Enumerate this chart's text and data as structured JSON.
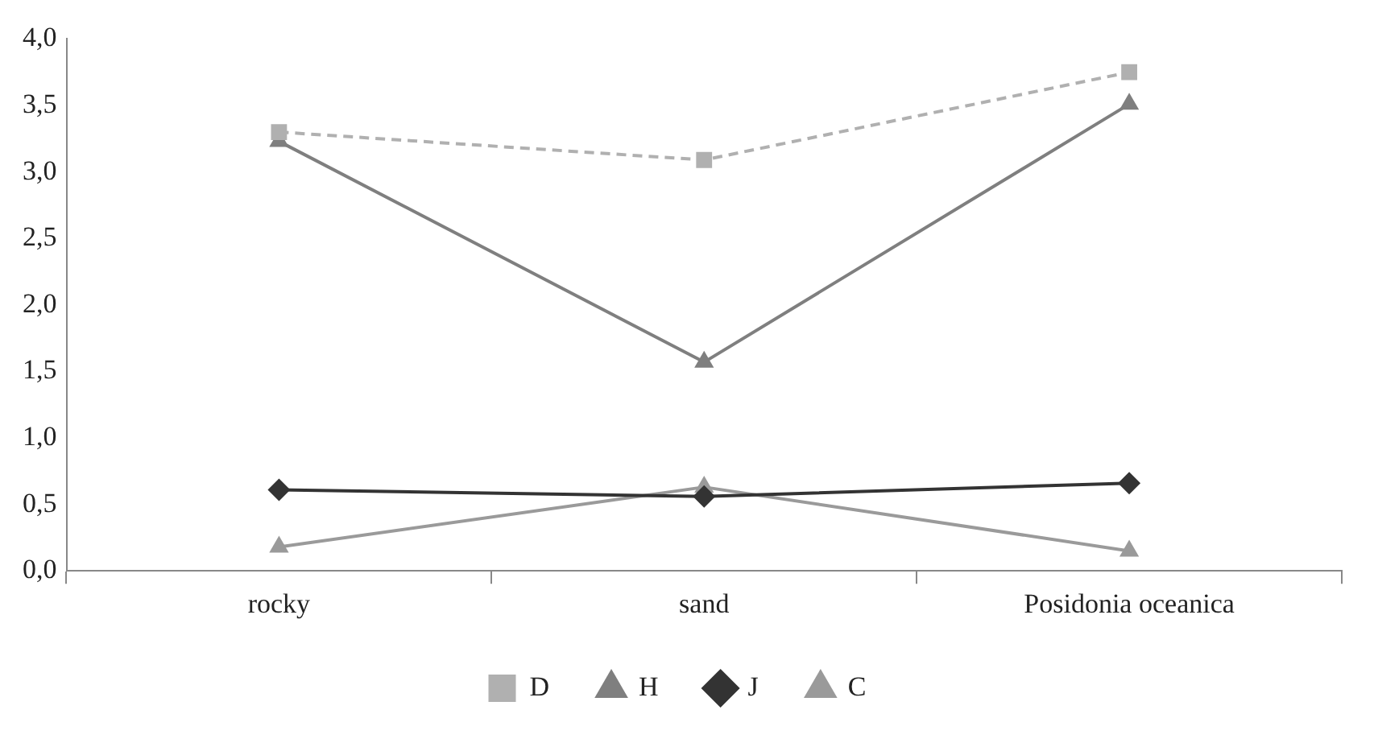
{
  "chart_data": {
    "type": "line",
    "categories": [
      "rocky",
      "sand",
      "Posidonia oceanica"
    ],
    "series": [
      {
        "name": "D",
        "color": "#b0b0b0",
        "values": [
          3.3,
          3.09,
          3.75
        ],
        "marker": "square",
        "line_style": "dashed"
      },
      {
        "name": "H",
        "color": "#7f7f7f",
        "values": [
          3.23,
          1.57,
          3.51
        ],
        "marker": "triangle",
        "line_style": "solid"
      },
      {
        "name": "J",
        "color": "#333333",
        "values": [
          0.61,
          0.56,
          0.66
        ],
        "marker": "diamond",
        "line_style": "solid"
      },
      {
        "name": "C",
        "color": "#9a9a9a",
        "values": [
          0.18,
          0.63,
          0.15
        ],
        "marker": "triangle",
        "line_style": "solid"
      }
    ],
    "ylim": [
      0,
      4
    ],
    "yticks": [
      {
        "value": 0,
        "label": "0,0"
      },
      {
        "value": 0.5,
        "label": "0,5"
      },
      {
        "value": 1,
        "label": "1,0"
      },
      {
        "value": 1.5,
        "label": "1,5"
      },
      {
        "value": 2,
        "label": "2,0"
      },
      {
        "value": 2.5,
        "label": "2,5"
      },
      {
        "value": 3,
        "label": "3,0"
      },
      {
        "value": 3.5,
        "label": "3,5"
      },
      {
        "value": 4,
        "label": "4,0"
      }
    ],
    "grid": false,
    "legend": "bottom"
  }
}
